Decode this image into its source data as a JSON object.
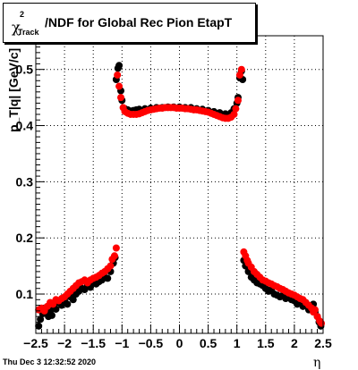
{
  "header": {
    "title_symbol": "χ",
    "title_superscript": "2",
    "title_subscript": "Track",
    "title_text": "/NDF for Global Rec Pion EtapT"
  },
  "footer": {
    "timestamp": "Thu Dec  3 12:32:52 2020"
  },
  "chart_data": {
    "type": "scatter",
    "title": "χ²_Track/NDF for Global Rec Pion EtapT",
    "xlabel": "η",
    "ylabel": "p_T|q| [GeV/c]",
    "xlim": [
      -2.5,
      2.5
    ],
    "ylim": [
      0.03,
      0.56
    ],
    "grid": true,
    "xticks": [
      -2.5,
      -2,
      -1.5,
      -1,
      -0.5,
      0,
      0.5,
      1,
      1.5,
      2,
      2.5
    ],
    "xtick_labels": [
      "−2.5",
      "−2",
      "−1.5",
      "−1",
      "−0.5",
      "0",
      "0.5",
      "1",
      "1.5",
      "2",
      "2.5"
    ],
    "yticks": [
      0.1,
      0.2,
      0.3,
      0.4,
      0.5
    ],
    "ytick_labels": [
      "0.1",
      "0.2",
      "0.3",
      "0.4",
      "0.5"
    ],
    "colors": {
      "series_black": "#000000",
      "series_red": "#ff0000"
    },
    "series": [
      {
        "marker": "black circle",
        "points": [
          [
            -2.45,
            0.043
          ],
          [
            -2.42,
            0.055
          ],
          [
            -2.38,
            0.065
          ],
          [
            -2.35,
            0.075
          ],
          [
            -2.32,
            0.068
          ],
          [
            -2.28,
            0.06
          ],
          [
            -2.25,
            0.07
          ],
          [
            -2.22,
            0.062
          ],
          [
            -2.18,
            0.078
          ],
          [
            -2.15,
            0.073
          ],
          [
            -2.1,
            0.085
          ],
          [
            -2.05,
            0.08
          ],
          [
            -2.0,
            0.088
          ],
          [
            -1.95,
            0.082
          ],
          [
            -1.9,
            0.095
          ],
          [
            -1.85,
            0.09
          ],
          [
            -1.8,
            0.1
          ],
          [
            -1.75,
            0.105
          ],
          [
            -1.7,
            0.11
          ],
          [
            -1.65,
            0.108
          ],
          [
            -1.6,
            0.115
          ],
          [
            -1.55,
            0.112
          ],
          [
            -1.5,
            0.12
          ],
          [
            -1.45,
            0.118
          ],
          [
            -1.4,
            0.122
          ],
          [
            -1.35,
            0.125
          ],
          [
            -1.3,
            0.13
          ],
          [
            -1.25,
            0.128
          ],
          [
            -1.2,
            0.14
          ],
          [
            -1.15,
            0.155
          ],
          [
            -1.12,
            0.165
          ],
          [
            -1.1,
            0.482
          ],
          [
            -1.07,
            0.502
          ],
          [
            -1.05,
            0.507
          ],
          [
            -1.02,
            0.462
          ],
          [
            -1.0,
            0.445
          ],
          [
            -0.95,
            0.43
          ],
          [
            -0.9,
            0.428
          ],
          [
            -0.85,
            0.426
          ],
          [
            -0.8,
            0.427
          ],
          [
            -0.75,
            0.428
          ],
          [
            -0.7,
            0.429
          ],
          [
            -0.6,
            0.43
          ],
          [
            -0.5,
            0.431
          ],
          [
            -0.4,
            0.432
          ],
          [
            -0.3,
            0.432
          ],
          [
            -0.2,
            0.433
          ],
          [
            -0.1,
            0.433
          ],
          [
            0.0,
            0.433
          ],
          [
            0.1,
            0.432
          ],
          [
            0.2,
            0.432
          ],
          [
            0.3,
            0.43
          ],
          [
            0.4,
            0.429
          ],
          [
            0.5,
            0.427
          ],
          [
            0.6,
            0.425
          ],
          [
            0.7,
            0.423
          ],
          [
            0.8,
            0.421
          ],
          [
            0.9,
            0.423
          ],
          [
            0.95,
            0.43
          ],
          [
            1.0,
            0.44
          ],
          [
            1.02,
            0.45
          ],
          [
            1.05,
            0.485
          ],
          [
            1.08,
            0.497
          ],
          [
            1.1,
            0.482
          ],
          [
            1.12,
            0.16
          ],
          [
            1.15,
            0.15
          ],
          [
            1.2,
            0.14
          ],
          [
            1.25,
            0.13
          ],
          [
            1.3,
            0.125
          ],
          [
            1.35,
            0.12
          ],
          [
            1.4,
            0.118
          ],
          [
            1.45,
            0.115
          ],
          [
            1.5,
            0.11
          ],
          [
            1.55,
            0.105
          ],
          [
            1.6,
            0.108
          ],
          [
            1.65,
            0.1
          ],
          [
            1.7,
            0.098
          ],
          [
            1.75,
            0.095
          ],
          [
            1.8,
            0.098
          ],
          [
            1.85,
            0.092
          ],
          [
            1.9,
            0.095
          ],
          [
            1.95,
            0.09
          ],
          [
            2.0,
            0.088
          ],
          [
            2.05,
            0.082
          ],
          [
            2.1,
            0.085
          ],
          [
            2.15,
            0.078
          ],
          [
            2.2,
            0.08
          ],
          [
            2.25,
            0.072
          ],
          [
            2.3,
            0.075
          ],
          [
            2.33,
            0.082
          ],
          [
            2.36,
            0.068
          ],
          [
            2.4,
            0.06
          ],
          [
            2.43,
            0.05
          ],
          [
            2.46,
            0.043
          ]
        ]
      },
      {
        "marker": "red circle",
        "points": [
          [
            -2.45,
            0.072
          ],
          [
            -2.4,
            0.075
          ],
          [
            -2.35,
            0.07
          ],
          [
            -2.3,
            0.078
          ],
          [
            -2.25,
            0.085
          ],
          [
            -2.2,
            0.082
          ],
          [
            -2.15,
            0.09
          ],
          [
            -2.1,
            0.088
          ],
          [
            -2.05,
            0.092
          ],
          [
            -2.0,
            0.095
          ],
          [
            -1.95,
            0.1
          ],
          [
            -1.9,
            0.105
          ],
          [
            -1.85,
            0.11
          ],
          [
            -1.8,
            0.115
          ],
          [
            -1.75,
            0.12
          ],
          [
            -1.7,
            0.122
          ],
          [
            -1.65,
            0.125
          ],
          [
            -1.6,
            0.12
          ],
          [
            -1.55,
            0.125
          ],
          [
            -1.5,
            0.128
          ],
          [
            -1.45,
            0.13
          ],
          [
            -1.4,
            0.133
          ],
          [
            -1.35,
            0.137
          ],
          [
            -1.3,
            0.14
          ],
          [
            -1.25,
            0.145
          ],
          [
            -1.2,
            0.15
          ],
          [
            -1.17,
            0.162
          ],
          [
            -1.13,
            0.168
          ],
          [
            -1.1,
            0.182
          ],
          [
            -1.08,
            0.49
          ],
          [
            -1.05,
            0.47
          ],
          [
            -1.02,
            0.45
          ],
          [
            -0.98,
            0.432
          ],
          [
            -0.95,
            0.425
          ],
          [
            -0.9,
            0.422
          ],
          [
            -0.85,
            0.42
          ],
          [
            -0.8,
            0.42
          ],
          [
            -0.75,
            0.42
          ],
          [
            -0.7,
            0.421
          ],
          [
            -0.65,
            0.423
          ],
          [
            -0.6,
            0.425
          ],
          [
            -0.55,
            0.427
          ],
          [
            -0.5,
            0.428
          ],
          [
            -0.45,
            0.429
          ],
          [
            -0.4,
            0.43
          ],
          [
            -0.35,
            0.431
          ],
          [
            -0.3,
            0.431
          ],
          [
            -0.25,
            0.432
          ],
          [
            -0.2,
            0.432
          ],
          [
            -0.15,
            0.432
          ],
          [
            -0.1,
            0.432
          ],
          [
            -0.05,
            0.431
          ],
          [
            0.0,
            0.431
          ],
          [
            0.05,
            0.431
          ],
          [
            0.1,
            0.43
          ],
          [
            0.15,
            0.43
          ],
          [
            0.2,
            0.429
          ],
          [
            0.25,
            0.428
          ],
          [
            0.3,
            0.428
          ],
          [
            0.35,
            0.427
          ],
          [
            0.4,
            0.426
          ],
          [
            0.45,
            0.425
          ],
          [
            0.5,
            0.424
          ],
          [
            0.55,
            0.422
          ],
          [
            0.6,
            0.42
          ],
          [
            0.65,
            0.418
          ],
          [
            0.7,
            0.416
          ],
          [
            0.75,
            0.414
          ],
          [
            0.8,
            0.413
          ],
          [
            0.85,
            0.413
          ],
          [
            0.9,
            0.415
          ],
          [
            0.95,
            0.42
          ],
          [
            0.98,
            0.43
          ],
          [
            1.02,
            0.445
          ],
          [
            1.05,
            0.49
          ],
          [
            1.08,
            0.5
          ],
          [
            1.12,
            0.175
          ],
          [
            1.15,
            0.168
          ],
          [
            1.18,
            0.16
          ],
          [
            1.2,
            0.155
          ],
          [
            1.25,
            0.148
          ],
          [
            1.3,
            0.14
          ],
          [
            1.35,
            0.135
          ],
          [
            1.4,
            0.13
          ],
          [
            1.45,
            0.125
          ],
          [
            1.5,
            0.123
          ],
          [
            1.55,
            0.12
          ],
          [
            1.6,
            0.118
          ],
          [
            1.65,
            0.115
          ],
          [
            1.7,
            0.113
          ],
          [
            1.75,
            0.11
          ],
          [
            1.8,
            0.108
          ],
          [
            1.85,
            0.105
          ],
          [
            1.9,
            0.102
          ],
          [
            1.95,
            0.1
          ],
          [
            2.0,
            0.098
          ],
          [
            2.05,
            0.095
          ],
          [
            2.1,
            0.092
          ],
          [
            2.15,
            0.09
          ],
          [
            2.2,
            0.085
          ],
          [
            2.25,
            0.08
          ],
          [
            2.3,
            0.075
          ],
          [
            2.33,
            0.068
          ],
          [
            2.36,
            0.072
          ],
          [
            2.4,
            0.06
          ],
          [
            2.44,
            0.052
          ],
          [
            2.47,
            0.048
          ]
        ]
      }
    ]
  }
}
